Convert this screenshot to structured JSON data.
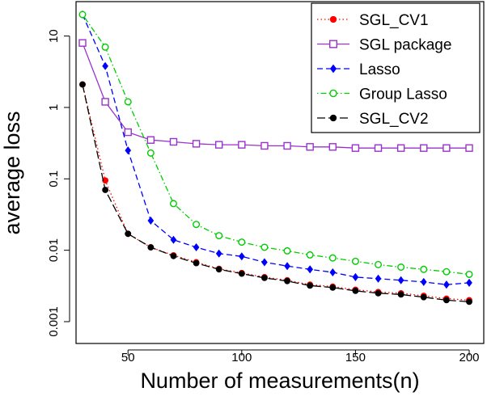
{
  "chart_data": {
    "type": "line",
    "title": "",
    "xlabel": "Number of measurements(n)",
    "ylabel": "average loss",
    "yscale": "log",
    "xlim": [
      30,
      200
    ],
    "ylim": [
      0.001,
      20
    ],
    "x_ticks": [
      50,
      100,
      150,
      200
    ],
    "x_tick_labels": [
      "50",
      "100",
      "150",
      "200"
    ],
    "y_ticks": [
      0.001,
      0.01,
      0.1,
      1,
      10
    ],
    "y_tick_labels": [
      "0.001",
      "0.01",
      "0.1",
      "1",
      "10"
    ],
    "legend_position": "top-right",
    "x": [
      30,
      40,
      50,
      60,
      70,
      80,
      90,
      100,
      110,
      120,
      130,
      140,
      150,
      160,
      170,
      180,
      190,
      200
    ],
    "series": [
      {
        "name": "SGL_CV1",
        "color": "#ff0000",
        "line": "dotted",
        "marker": "filled-circle",
        "values": [
          2.1,
          0.095,
          0.017,
          0.011,
          0.0085,
          0.0068,
          0.0055,
          0.0048,
          0.0042,
          0.0038,
          0.0033,
          0.0031,
          0.0028,
          0.0026,
          0.0025,
          0.0023,
          0.0021,
          0.002
        ]
      },
      {
        "name": "SGL package",
        "color": "#9932cc",
        "line": "solid",
        "marker": "open-square",
        "values": [
          8.0,
          1.2,
          0.45,
          0.35,
          0.33,
          0.31,
          0.3,
          0.3,
          0.29,
          0.29,
          0.28,
          0.28,
          0.27,
          0.27,
          0.27,
          0.27,
          0.27,
          0.27
        ]
      },
      {
        "name": "Lasso",
        "color": "#0000ff",
        "line": "dashed",
        "marker": "filled-diamond",
        "values": [
          20,
          3.8,
          0.25,
          0.026,
          0.014,
          0.011,
          0.009,
          0.0082,
          0.0068,
          0.006,
          0.0054,
          0.0049,
          0.0042,
          0.004,
          0.0038,
          0.0036,
          0.0033,
          0.0035
        ]
      },
      {
        "name": "Group Lasso",
        "color": "#00cc00",
        "line": "dot-dash",
        "marker": "open-circle",
        "values": [
          20,
          7.0,
          1.2,
          0.23,
          0.045,
          0.023,
          0.016,
          0.013,
          0.011,
          0.0098,
          0.0086,
          0.0078,
          0.007,
          0.0063,
          0.0058,
          0.0054,
          0.005,
          0.0046
        ]
      },
      {
        "name": "SGL_CV2",
        "color": "#000000",
        "line": "long-dash",
        "marker": "filled-circle",
        "values": [
          2.1,
          0.07,
          0.017,
          0.011,
          0.0083,
          0.0066,
          0.0054,
          0.0047,
          0.0041,
          0.0037,
          0.0032,
          0.003,
          0.0027,
          0.0025,
          0.0024,
          0.0022,
          0.002,
          0.0019
        ]
      }
    ]
  }
}
